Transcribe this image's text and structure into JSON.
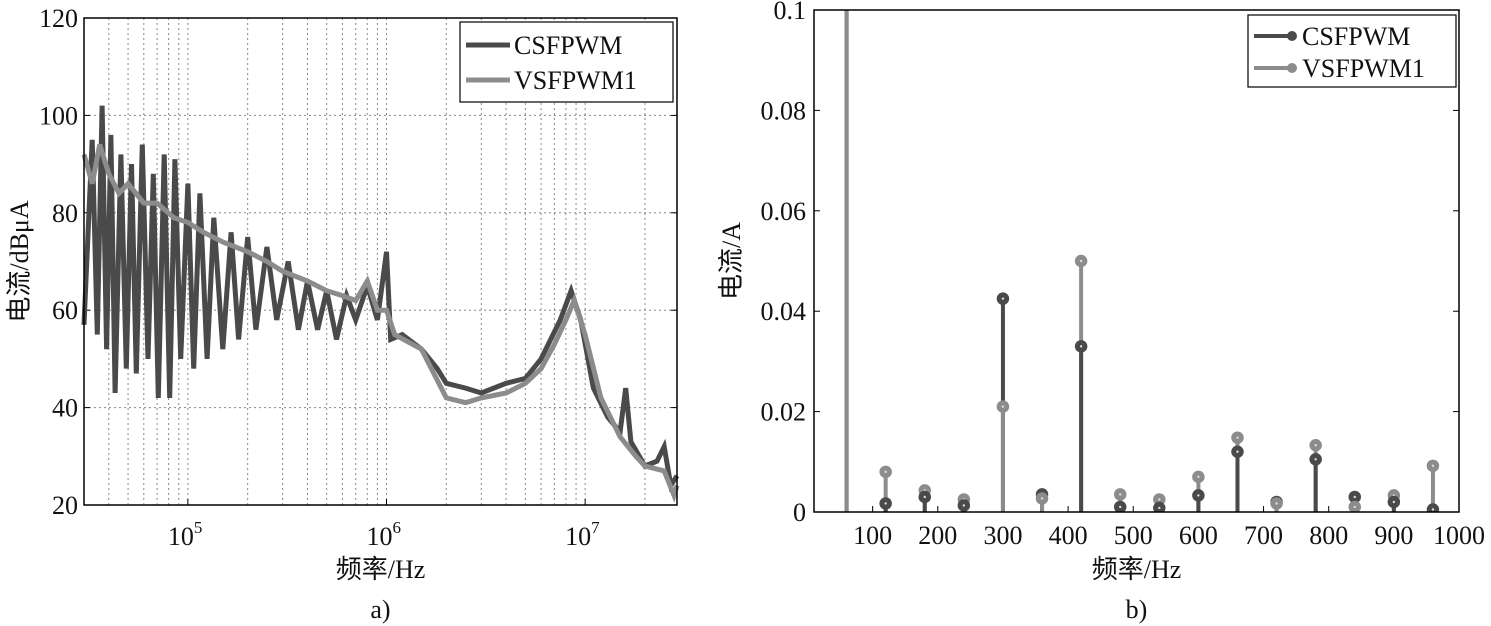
{
  "chart_data": [
    {
      "type": "line",
      "panel_label": "a)",
      "xlabel": "频率/Hz",
      "ylabel": "电流/dBμA",
      "xscale": "log",
      "xlim": [
        30000,
        29000000
      ],
      "ylim": [
        20,
        120
      ],
      "yticks": [
        20,
        40,
        60,
        80,
        100,
        120
      ],
      "xticks": [
        {
          "value": 100000,
          "base": "10",
          "exp": "5"
        },
        {
          "value": 1000000,
          "base": "10",
          "exp": "6"
        },
        {
          "value": 10000000,
          "base": "10",
          "exp": "7"
        }
      ],
      "grid": true,
      "legend": "top-right",
      "series": [
        {
          "name": "CSFPWM",
          "color": "#4a4a4a",
          "points": [
            [
              30000,
              57
            ],
            [
              33000,
              95
            ],
            [
              35000,
              55
            ],
            [
              37000,
              102
            ],
            [
              39000,
              52
            ],
            [
              41000,
              96
            ],
            [
              43000,
              43
            ],
            [
              46000,
              92
            ],
            [
              49000,
              48
            ],
            [
              52000,
              90
            ],
            [
              55000,
              47
            ],
            [
              59000,
              94
            ],
            [
              63000,
              50
            ],
            [
              67000,
              88
            ],
            [
              71000,
              42
            ],
            [
              76000,
              92
            ],
            [
              81000,
              42
            ],
            [
              86000,
              91
            ],
            [
              92000,
              50
            ],
            [
              100000,
              86
            ],
            [
              107000,
              48
            ],
            [
              115000,
              84
            ],
            [
              125000,
              50
            ],
            [
              135000,
              79
            ],
            [
              150000,
              52
            ],
            [
              165000,
              76
            ],
            [
              180000,
              54
            ],
            [
              200000,
              75
            ],
            [
              220000,
              56
            ],
            [
              250000,
              73
            ],
            [
              280000,
              58
            ],
            [
              320000,
              70
            ],
            [
              360000,
              56
            ],
            [
              400000,
              66
            ],
            [
              450000,
              56
            ],
            [
              500000,
              64
            ],
            [
              560000,
              54
            ],
            [
              630000,
              63
            ],
            [
              700000,
              58
            ],
            [
              800000,
              65
            ],
            [
              900000,
              58
            ],
            [
              1000000,
              72
            ],
            [
              1050000,
              54
            ],
            [
              1200000,
              55
            ],
            [
              1500000,
              52
            ],
            [
              1800000,
              48
            ],
            [
              2000000,
              45
            ],
            [
              2500000,
              44
            ],
            [
              3000000,
              43
            ],
            [
              4000000,
              45
            ],
            [
              5000000,
              46
            ],
            [
              6000000,
              50
            ],
            [
              7500000,
              58
            ],
            [
              8500000,
              64
            ],
            [
              9500000,
              58
            ],
            [
              11000000,
              44
            ],
            [
              13000000,
              38
            ],
            [
              15000000,
              35
            ],
            [
              16000000,
              44
            ],
            [
              17000000,
              33
            ],
            [
              20000000,
              28
            ],
            [
              23000000,
              29
            ],
            [
              25000000,
              32
            ],
            [
              27000000,
              24
            ],
            [
              29000000,
              26
            ]
          ]
        },
        {
          "name": "VSFPWM1",
          "color": "#8c8c8c",
          "points": [
            [
              30000,
              92
            ],
            [
              33000,
              86
            ],
            [
              36000,
              94
            ],
            [
              40000,
              88
            ],
            [
              45000,
              84
            ],
            [
              50000,
              86
            ],
            [
              60000,
              82
            ],
            [
              70000,
              82
            ],
            [
              85000,
              79
            ],
            [
              100000,
              78
            ],
            [
              120000,
              76
            ],
            [
              150000,
              74
            ],
            [
              200000,
              72
            ],
            [
              250000,
              70
            ],
            [
              300000,
              68
            ],
            [
              400000,
              66
            ],
            [
              500000,
              64
            ],
            [
              600000,
              63
            ],
            [
              700000,
              62
            ],
            [
              800000,
              66
            ],
            [
              900000,
              60
            ],
            [
              1000000,
              60
            ],
            [
              1100000,
              55
            ],
            [
              1500000,
              52
            ],
            [
              2000000,
              42
            ],
            [
              2500000,
              41
            ],
            [
              3000000,
              42
            ],
            [
              4000000,
              43
            ],
            [
              5000000,
              45
            ],
            [
              6000000,
              48
            ],
            [
              7000000,
              53
            ],
            [
              8000000,
              58
            ],
            [
              8800000,
              62
            ],
            [
              10000000,
              55
            ],
            [
              12000000,
              42
            ],
            [
              15000000,
              34
            ],
            [
              18000000,
              30
            ],
            [
              20000000,
              28
            ],
            [
              25000000,
              27
            ],
            [
              28000000,
              22
            ],
            [
              29000000,
              24
            ]
          ]
        }
      ]
    },
    {
      "type": "stem",
      "panel_label": "b)",
      "xlabel": "频率/Hz",
      "ylabel": "电流/A",
      "xlim": [
        10,
        1000
      ],
      "ylim": [
        0,
        0.1
      ],
      "xticks": [
        100,
        200,
        300,
        400,
        500,
        600,
        700,
        800,
        900,
        1000
      ],
      "yticks": [
        0,
        0.02,
        0.04,
        0.06,
        0.08,
        0.1
      ],
      "ytick_labels": [
        "0",
        "0.02",
        "0.04",
        "0.06",
        "0.08",
        "0.1"
      ],
      "grid": false,
      "legend": "top-right",
      "x": [
        60,
        120,
        180,
        240,
        300,
        360,
        420,
        480,
        540,
        600,
        660,
        720,
        780,
        840,
        900,
        960
      ],
      "series": [
        {
          "name": "CSFPWM",
          "color": "#4a4a4a",
          "values": [
            0.15,
            0.0017,
            0.003,
            0.0013,
            0.0425,
            0.0035,
            0.033,
            0.001,
            0.0008,
            0.0033,
            0.012,
            0.002,
            0.0105,
            0.003,
            0.002,
            0.0005
          ]
        },
        {
          "name": "VSFPWM1",
          "color": "#8c8c8c",
          "values": [
            0.15,
            0.008,
            0.0043,
            0.0025,
            0.021,
            0.0027,
            0.05,
            0.0035,
            0.0025,
            0.007,
            0.0148,
            0.0017,
            0.0133,
            0.001,
            0.0033,
            0.0092
          ]
        }
      ]
    }
  ]
}
